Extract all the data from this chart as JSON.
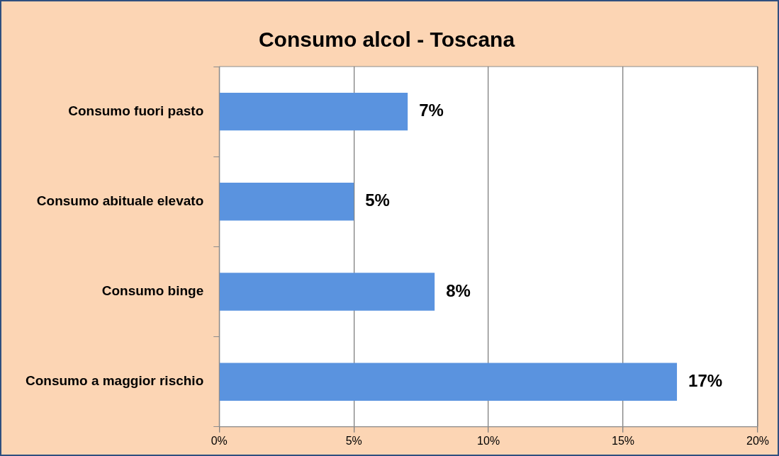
{
  "chart_data": {
    "type": "bar",
    "title": "Consumo alcol - Toscana",
    "orientation": "horizontal",
    "categories": [
      "Consumo fuori pasto",
      "Consumo abituale elevato",
      "Consumo binge",
      "Consumo a maggior rischio"
    ],
    "values": [
      7,
      5,
      8,
      17
    ],
    "color": "#5a93df",
    "value_labels": [
      "7%",
      "5%",
      "8%",
      "17%"
    ],
    "xlim": [
      0,
      20
    ],
    "xticks": [
      {
        "value": 0,
        "label": "0%"
      },
      {
        "value": 5,
        "label": "5%"
      },
      {
        "value": 10,
        "label": "10%"
      },
      {
        "value": 15,
        "label": "15%"
      },
      {
        "value": 20,
        "label": "20%"
      }
    ],
    "grid": "x",
    "legend": false
  }
}
